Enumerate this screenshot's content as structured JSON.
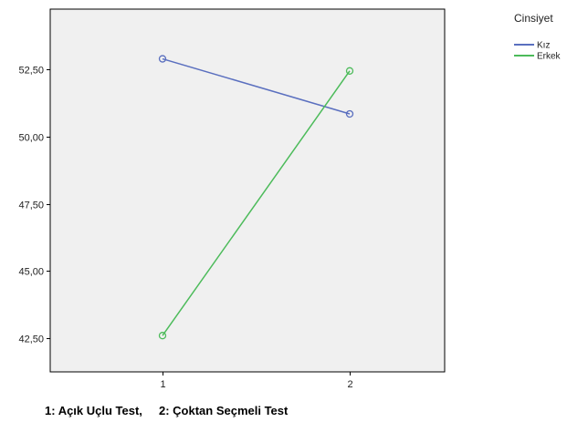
{
  "chart_data": {
    "type": "line",
    "categories": [
      "1",
      "2"
    ],
    "series": [
      {
        "name": "Kız",
        "values": [
          52.9,
          50.85
        ],
        "color": "#5a6fbf"
      },
      {
        "name": "Erkek",
        "values": [
          42.6,
          52.45
        ],
        "color": "#4cbb5a"
      }
    ],
    "ylim": [
      41.25,
      54.75
    ],
    "yticks": [
      42.5,
      45.0,
      47.5,
      50.0,
      52.5
    ],
    "ytick_labels": [
      "42,50",
      "45,00",
      "47,50",
      "50,00",
      "52,50"
    ],
    "legend_title": "Cinsiyet",
    "legend_position": "right",
    "x_caption": "1: Açık Uçlu Test,     2: Çoktan Seçmeli Test",
    "plot_background": "#f0f0f0",
    "grid": false
  }
}
